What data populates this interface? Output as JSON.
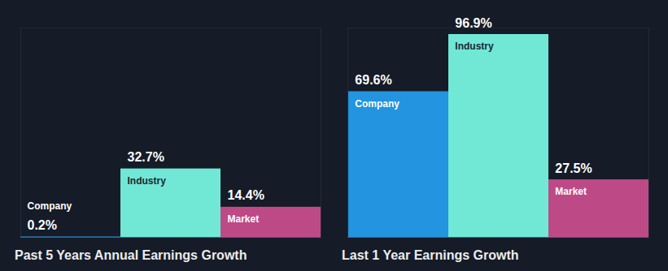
{
  "chart_data": [
    {
      "type": "bar",
      "title": "Past 5 Years Annual Earnings Growth",
      "categories": [
        "Company",
        "Industry",
        "Market"
      ],
      "values": [
        0.2,
        32.7,
        14.4
      ],
      "value_labels": [
        "0.2%",
        "32.7%",
        "14.4%"
      ],
      "colors": [
        "#2394df",
        "#71e8d6",
        "#bd4a87"
      ],
      "ylim": [
        0,
        100
      ],
      "data_labels": true,
      "tick_labels": false
    },
    {
      "type": "bar",
      "title": "Last 1 Year Earnings Growth",
      "categories": [
        "Company",
        "Industry",
        "Market"
      ],
      "values": [
        69.6,
        96.9,
        27.5
      ],
      "value_labels": [
        "69.6%",
        "96.9%",
        "27.5%"
      ],
      "colors": [
        "#2394df",
        "#71e8d6",
        "#bd4a87"
      ],
      "ylim": [
        0,
        100
      ],
      "data_labels": true,
      "tick_labels": false
    }
  ]
}
